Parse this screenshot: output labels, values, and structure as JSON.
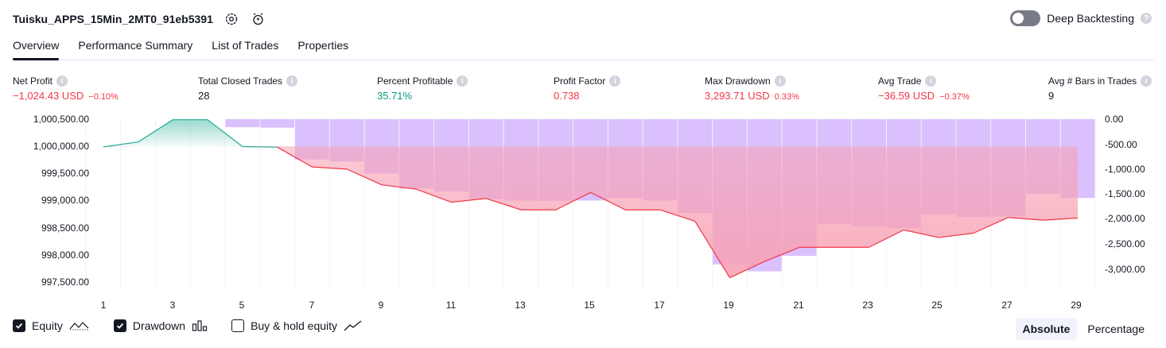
{
  "header": {
    "title": "Tuisku_APPS_15Min_2MT0_91eb5391",
    "settings_icon": "gear-icon",
    "alert_icon": "add-alert-icon"
  },
  "deep_backtesting": {
    "label": "Deep Backtesting",
    "enabled": false
  },
  "tabs": [
    {
      "label": "Overview",
      "active": true
    },
    {
      "label": "Performance Summary",
      "active": false
    },
    {
      "label": "List of Trades",
      "active": false
    },
    {
      "label": "Properties",
      "active": false
    }
  ],
  "metrics": {
    "net_profit": {
      "label": "Net Profit",
      "value": "−1,024.43 USD",
      "pct": "−0.10%"
    },
    "total_closed_trades": {
      "label": "Total Closed Trades",
      "value": "28"
    },
    "percent_profitable": {
      "label": "Percent Profitable",
      "value": "35.71%"
    },
    "profit_factor": {
      "label": "Profit Factor",
      "value": "0.738"
    },
    "max_drawdown": {
      "label": "Max Drawdown",
      "value": "3,293.71 USD",
      "pct": "0.33%"
    },
    "avg_trade": {
      "label": "Avg Trade",
      "value": "−36.59 USD",
      "pct": "−0.37%"
    },
    "avg_bars": {
      "label": "Avg # Bars in Trades",
      "value": "9"
    }
  },
  "chart_data": {
    "type": "line",
    "equity_axis": {
      "ticks": [
        "1,000,500.00",
        "1,000,000.00",
        "999,500.00",
        "999,000.00",
        "998,500.00",
        "998,000.00",
        "997,500.00"
      ]
    },
    "drawdown_axis": {
      "ticks": [
        "0.00",
        "-500.00",
        "-1,000.00",
        "-1,500.00",
        "-2,000.00",
        "-2,500.00",
        "-3,000.00"
      ]
    },
    "x_ticks": [
      "1",
      "3",
      "5",
      "7",
      "9",
      "11",
      "13",
      "15",
      "17",
      "19",
      "21",
      "23",
      "25",
      "27",
      "29"
    ],
    "x": [
      1,
      2,
      3,
      4,
      5,
      6,
      7,
      8,
      9,
      10,
      11,
      12,
      13,
      14,
      15,
      16,
      17,
      18,
      19,
      20,
      21,
      22,
      23,
      24,
      25,
      26,
      27,
      28,
      29
    ],
    "series": [
      {
        "name": "Equity",
        "type": "line",
        "color": "#f23645",
        "positive_color": "#22ab94",
        "values": [
          999990,
          1000080,
          1000490,
          1000490,
          999995,
          999985,
          999620,
          999580,
          999290,
          999210,
          998970,
          999040,
          998830,
          998830,
          999150,
          998830,
          998830,
          998620,
          997580,
          997880,
          998140,
          998140,
          998140,
          998460,
          998320,
          998400,
          998690,
          998640,
          998680
        ]
      },
      {
        "name": "Drawdown",
        "type": "bar",
        "color": "#d4b5fd",
        "values": [
          0,
          0,
          0,
          0,
          -160,
          -170,
          -810,
          -850,
          -1090,
          -1390,
          -1450,
          -1600,
          -1630,
          -1640,
          -1630,
          -1580,
          -1630,
          -1880,
          -2910,
          -3050,
          -2740,
          -2100,
          -2150,
          -2180,
          -1910,
          -1960,
          -1950,
          -1500,
          -1580
        ]
      }
    ]
  },
  "legend": {
    "equity": {
      "label": "Equity",
      "checked": true
    },
    "drawdown": {
      "label": "Drawdown",
      "checked": true
    },
    "buy_hold": {
      "label": "Buy & hold equity",
      "checked": false
    }
  },
  "mode": {
    "absolute": "Absolute",
    "percentage": "Percentage",
    "selected": "Absolute"
  }
}
